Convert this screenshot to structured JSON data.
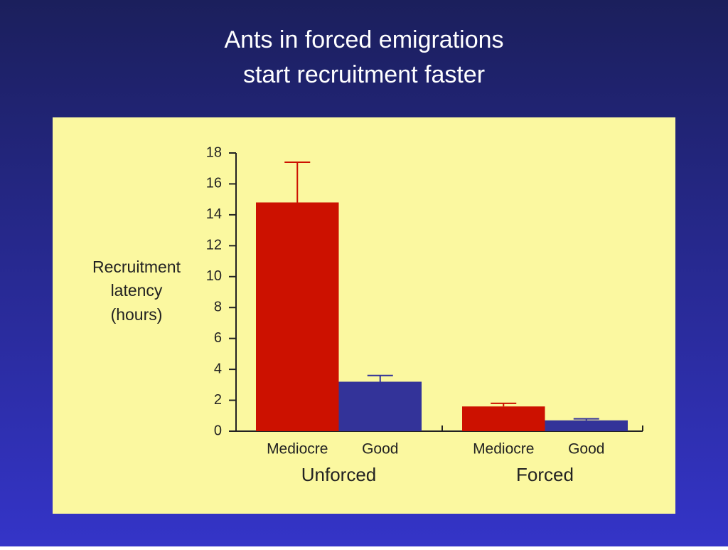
{
  "chart_data": {
    "type": "bar",
    "title": [
      "Ants in forced emigrations",
      "start recruitment faster"
    ],
    "ylabel": [
      "Recruitment",
      "latency",
      "(hours)"
    ],
    "categories": [
      "Unforced",
      "Forced"
    ],
    "series": [
      {
        "name": "Mediocre",
        "color": "#cc1100",
        "values": [
          14.8,
          1.6
        ],
        "errors": [
          2.6,
          0.2
        ]
      },
      {
        "name": "Good",
        "color": "#333399",
        "values": [
          3.2,
          0.7
        ],
        "errors": [
          0.4,
          0.1
        ]
      }
    ],
    "ylim": [
      0,
      18
    ],
    "yticks": [
      0,
      2,
      4,
      6,
      8,
      10,
      12,
      14,
      16,
      18
    ]
  }
}
